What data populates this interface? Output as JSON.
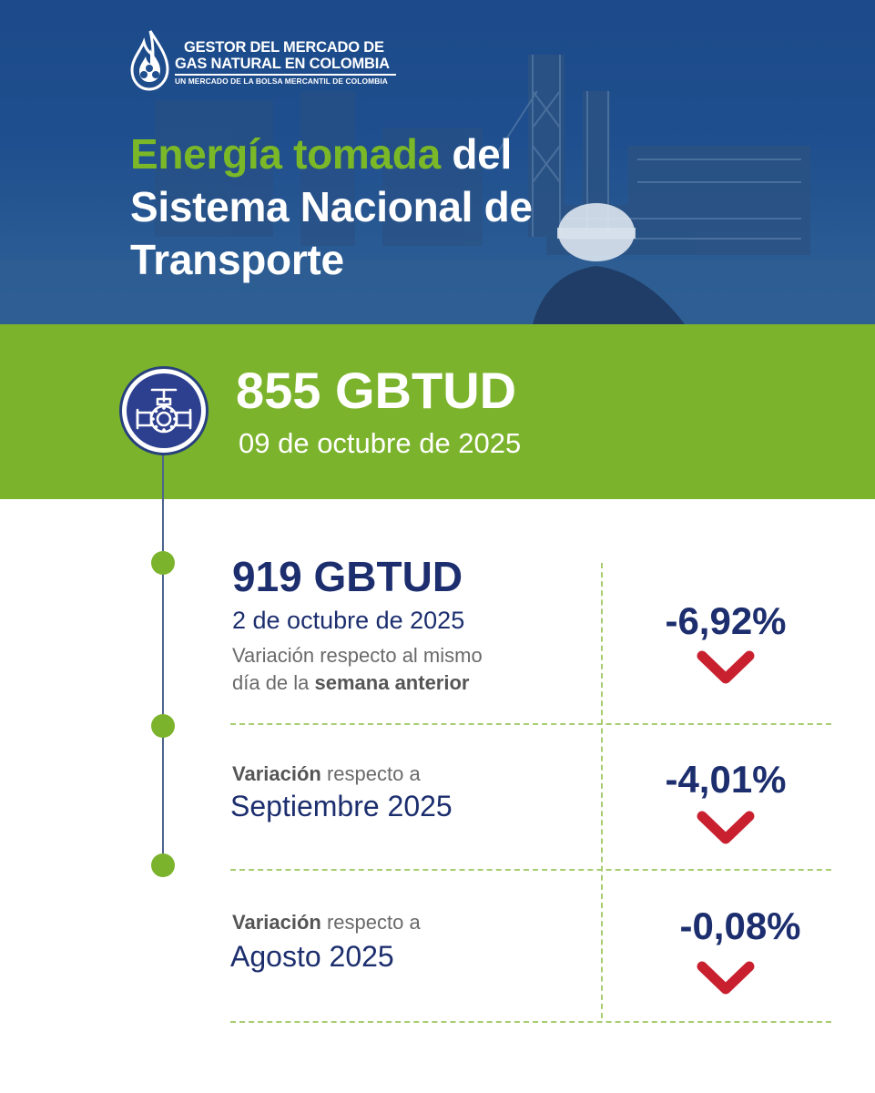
{
  "brand": {
    "line1": "GESTOR DEL MERCADO DE",
    "line2": "GAS NATURAL EN COLOMBIA",
    "tagline": "UN MERCADO DE LA BOLSA MERCANTIL DE COLOMBIA"
  },
  "title": {
    "highlight": "Energía tomada",
    "line1_rest": " del",
    "line2": "Sistema Nacional de",
    "line3": "Transporte"
  },
  "current": {
    "value": "855 GBTUD",
    "date": "09 de octubre de 2025"
  },
  "comparisons": [
    {
      "value": "919 GBTUD",
      "date": "2 de octubre de 2025",
      "desc_line1": "Variación respecto al mismo",
      "desc_line2_plain": "día de la ",
      "desc_line2_bold": "semana anterior",
      "change": "-6,92%",
      "direction": "down"
    },
    {
      "caption_bold": "Variación",
      "caption_rest": " respecto a",
      "period": "Septiembre 2025",
      "change": "-4,01%",
      "direction": "down"
    },
    {
      "caption_bold": "Variación",
      "caption_rest": " respecto a",
      "period": "Agosto 2025",
      "change": "-0,08%",
      "direction": "down"
    }
  ],
  "colors": {
    "navy": "#1c2e6e",
    "green": "#7cb32c",
    "header_blue": "#1f4f8e",
    "down_red": "#c8202f"
  },
  "icons": {
    "logo": "flame-drop-logo",
    "main": "pipeline-valve-icon",
    "trend": "chevron-down-icon"
  }
}
